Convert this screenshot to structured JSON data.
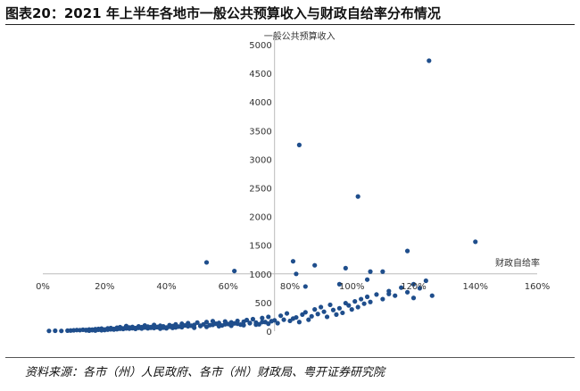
{
  "title": "图表20：2021 年上半年各地市一般公共预算收入与财政自给率分布情况",
  "source": "资料来源：各市（州）人民政府、各市（州）财政局、粤开证券研究院",
  "chart_data": {
    "type": "scatter",
    "ylabel": "一般公共预算收入",
    "xlabel": "财政自给率",
    "x_ticks": [
      "0%",
      "20%",
      "40%",
      "60%",
      "80%",
      "100%",
      "120%",
      "140%",
      "160%"
    ],
    "y_ticks": [
      "0",
      "500",
      "1000",
      "1500",
      "2000",
      "2500",
      "3000",
      "3500",
      "4000",
      "4500",
      "5000"
    ],
    "xlim": [
      0,
      160
    ],
    "ylim": [
      0,
      5000
    ],
    "x_unit": "%",
    "marker_color": "#1f4e8c",
    "points": [
      [
        2,
        5
      ],
      [
        4,
        8
      ],
      [
        6,
        5
      ],
      [
        8,
        10
      ],
      [
        9,
        12
      ],
      [
        10,
        15
      ],
      [
        11,
        20
      ],
      [
        12,
        18
      ],
      [
        13,
        25
      ],
      [
        14,
        22
      ],
      [
        15,
        30
      ],
      [
        16,
        28
      ],
      [
        17,
        35
      ],
      [
        18,
        40
      ],
      [
        19,
        45
      ],
      [
        20,
        30
      ],
      [
        21,
        50
      ],
      [
        22,
        55
      ],
      [
        23,
        40
      ],
      [
        24,
        60
      ],
      [
        25,
        70
      ],
      [
        26,
        50
      ],
      [
        27,
        90
      ],
      [
        28,
        65
      ],
      [
        29,
        75
      ],
      [
        30,
        55
      ],
      [
        31,
        85
      ],
      [
        32,
        70
      ],
      [
        33,
        100
      ],
      [
        34,
        80
      ],
      [
        35,
        60
      ],
      [
        36,
        110
      ],
      [
        37,
        75
      ],
      [
        38,
        95
      ],
      [
        39,
        85
      ],
      [
        40,
        65
      ],
      [
        41,
        105
      ],
      [
        42,
        90
      ],
      [
        43,
        120
      ],
      [
        44,
        80
      ],
      [
        45,
        130
      ],
      [
        46,
        100
      ],
      [
        47,
        140
      ],
      [
        48,
        95
      ],
      [
        49,
        110
      ],
      [
        50,
        150
      ],
      [
        51,
        90
      ],
      [
        52,
        120
      ],
      [
        53,
        160
      ],
      [
        54,
        105
      ],
      [
        55,
        175
      ],
      [
        56,
        130
      ],
      [
        57,
        145
      ],
      [
        58,
        100
      ],
      [
        59,
        170
      ],
      [
        60,
        125
      ],
      [
        61,
        155
      ],
      [
        62,
        135
      ],
      [
        63,
        180
      ],
      [
        64,
        115
      ],
      [
        65,
        165
      ],
      [
        66,
        195
      ],
      [
        67,
        140
      ],
      [
        68,
        210
      ],
      [
        69,
        150
      ],
      [
        70,
        120
      ],
      [
        71,
        230
      ],
      [
        72,
        160
      ],
      [
        73,
        250
      ],
      [
        74,
        175
      ],
      [
        75,
        190
      ],
      [
        76,
        140
      ],
      [
        77,
        270
      ],
      [
        78,
        200
      ],
      [
        79,
        310
      ],
      [
        80,
        180
      ],
      [
        81,
        220
      ],
      [
        82,
        240
      ],
      [
        83,
        160
      ],
      [
        84,
        290
      ],
      [
        85,
        330
      ],
      [
        86,
        200
      ],
      [
        87,
        260
      ],
      [
        88,
        380
      ],
      [
        89,
        300
      ],
      [
        90,
        420
      ],
      [
        91,
        340
      ],
      [
        92,
        250
      ],
      [
        93,
        460
      ],
      [
        94,
        370
      ],
      [
        95,
        290
      ],
      [
        96,
        400
      ],
      [
        97,
        320
      ],
      [
        98,
        490
      ],
      [
        99,
        450
      ],
      [
        100,
        380
      ],
      [
        101,
        520
      ],
      [
        102,
        420
      ],
      [
        103,
        560
      ],
      [
        104,
        480
      ],
      [
        105,
        600
      ],
      [
        106,
        510
      ],
      [
        108,
        640
      ],
      [
        110,
        560
      ],
      [
        112,
        700
      ],
      [
        114,
        620
      ],
      [
        116,
        760
      ],
      [
        118,
        680
      ],
      [
        120,
        820
      ],
      [
        122,
        750
      ],
      [
        124,
        880
      ],
      [
        53,
        1200
      ],
      [
        62,
        1050
      ],
      [
        81,
        1220
      ],
      [
        82,
        1000
      ],
      [
        83,
        3250
      ],
      [
        88,
        1150
      ],
      [
        98,
        1100
      ],
      [
        102,
        2350
      ],
      [
        106,
        1040
      ],
      [
        110,
        1040
      ],
      [
        118,
        1400
      ],
      [
        125,
        4720
      ],
      [
        140,
        1560
      ],
      [
        85,
        780
      ],
      [
        96,
        820
      ],
      [
        105,
        900
      ],
      [
        112,
        650
      ],
      [
        120,
        580
      ],
      [
        126,
        620
      ],
      [
        45,
        70
      ],
      [
        47,
        85
      ],
      [
        49,
        60
      ],
      [
        51,
        95
      ],
      [
        53,
        75
      ],
      [
        55,
        110
      ],
      [
        57,
        88
      ],
      [
        59,
        120
      ],
      [
        61,
        95
      ],
      [
        63,
        130
      ],
      [
        65,
        105
      ],
      [
        67,
        145
      ],
      [
        69,
        115
      ],
      [
        71,
        160
      ],
      [
        73,
        130
      ],
      [
        36,
        55
      ],
      [
        37,
        70
      ],
      [
        38,
        45
      ],
      [
        39,
        62
      ],
      [
        40,
        50
      ],
      [
        41,
        78
      ],
      [
        42,
        58
      ],
      [
        43,
        66
      ],
      [
        24,
        35
      ],
      [
        25,
        42
      ],
      [
        26,
        38
      ],
      [
        27,
        48
      ],
      [
        28,
        44
      ],
      [
        29,
        52
      ],
      [
        30,
        40
      ],
      [
        31,
        58
      ],
      [
        32,
        46
      ],
      [
        33,
        64
      ],
      [
        34,
        50
      ],
      [
        35,
        72
      ],
      [
        14,
        15
      ],
      [
        16,
        18
      ],
      [
        18,
        24
      ],
      [
        20,
        20
      ],
      [
        21,
        26
      ],
      [
        22,
        32
      ],
      [
        23,
        28
      ],
      [
        17,
        12
      ],
      [
        19,
        16
      ],
      [
        15,
        10
      ]
    ]
  }
}
